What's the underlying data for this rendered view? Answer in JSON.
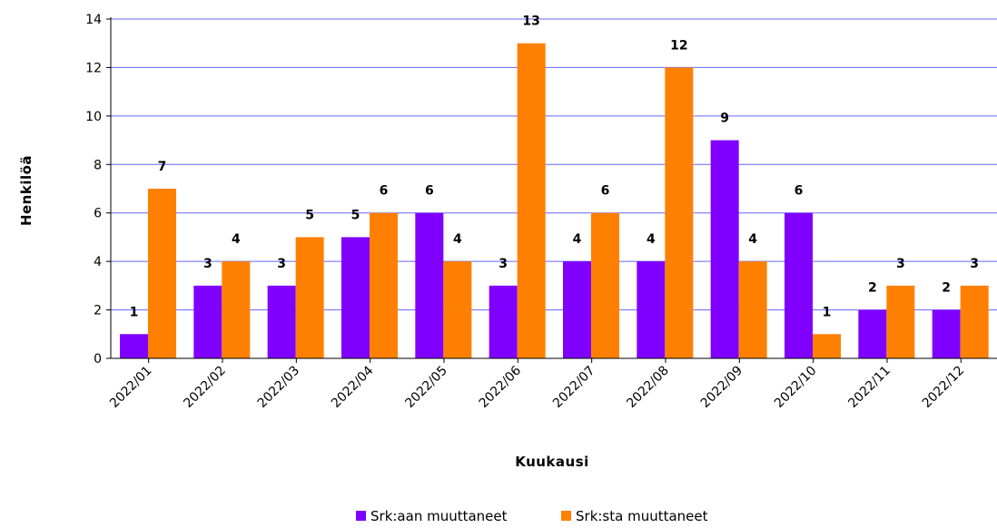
{
  "chart_data": {
    "type": "bar",
    "categories": [
      "2022/01",
      "2022/02",
      "2022/03",
      "2022/04",
      "2022/05",
      "2022/06",
      "2022/07",
      "2022/08",
      "2022/09",
      "2022/10",
      "2022/11",
      "2022/12"
    ],
    "series": [
      {
        "name": "Srk:aan muuttaneet",
        "color": "#8000ff",
        "values": [
          1,
          3,
          3,
          5,
          6,
          3,
          4,
          4,
          9,
          6,
          2,
          2
        ]
      },
      {
        "name": "Srk:sta muuttaneet",
        "color": "#ff8000",
        "values": [
          7,
          4,
          5,
          6,
          4,
          13,
          6,
          12,
          4,
          1,
          3,
          3
        ]
      }
    ],
    "xlabel": "Kuukausi",
    "ylabel": "Henkilöä",
    "ylim": [
      0,
      14
    ],
    "yticks": [
      0,
      2,
      4,
      6,
      8,
      10,
      12,
      14
    ],
    "grid": true,
    "grid_color": "#6666ff",
    "legend_position": "bottom"
  }
}
